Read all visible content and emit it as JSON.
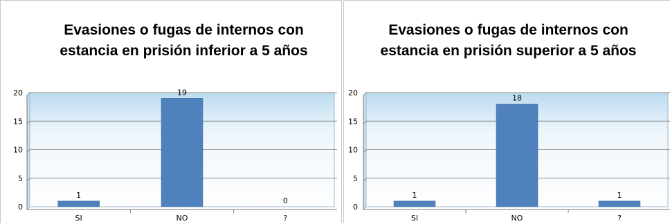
{
  "chart_data": [
    {
      "type": "bar",
      "title": "Evasiones o fugas de internos con estancia en prisión inferior a 5 años",
      "categories": [
        "SI",
        "NO",
        "?"
      ],
      "values": [
        1,
        19,
        0
      ],
      "ylim": [
        0,
        20
      ],
      "yticks": [
        "0",
        "5",
        "10",
        "15",
        "20"
      ],
      "grid": true,
      "bar_color": "#4f81bd"
    },
    {
      "type": "bar",
      "title": "Evasiones o fugas de internos con estancia en prisión superior a 5 años",
      "categories": [
        "SI",
        "NO",
        "?"
      ],
      "values": [
        1,
        18,
        1
      ],
      "ylim": [
        0,
        20
      ],
      "yticks": [
        "0",
        "5",
        "10",
        "15",
        "20"
      ],
      "grid": true,
      "bar_color": "#4f81bd"
    }
  ]
}
